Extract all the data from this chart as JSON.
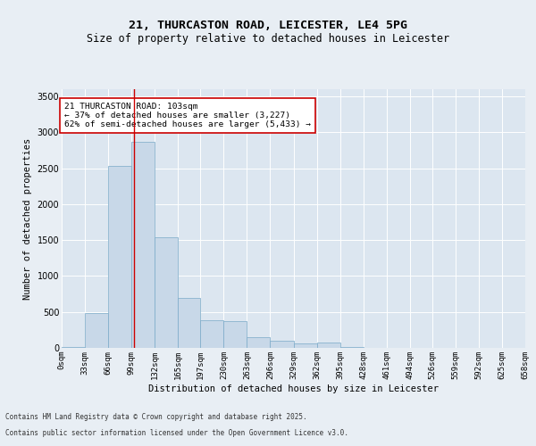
{
  "title1": "21, THURCASTON ROAD, LEICESTER, LE4 5PG",
  "title2": "Size of property relative to detached houses in Leicester",
  "xlabel": "Distribution of detached houses by size in Leicester",
  "ylabel": "Number of detached properties",
  "footnote1": "Contains HM Land Registry data © Crown copyright and database right 2025.",
  "footnote2": "Contains public sector information licensed under the Open Government Licence v3.0.",
  "bin_edges": [
    0,
    33,
    66,
    99,
    132,
    165,
    197,
    230,
    263,
    296,
    329,
    362,
    395,
    428,
    461,
    494,
    526,
    559,
    592,
    625,
    658
  ],
  "bar_heights": [
    18,
    480,
    2530,
    2870,
    1540,
    700,
    380,
    375,
    150,
    100,
    58,
    80,
    18,
    5,
    5,
    5,
    3,
    3,
    3,
    2
  ],
  "bar_color": "#c8d8e8",
  "bar_edge_color": "#7aaac8",
  "property_size": 103,
  "vline_color": "#cc0000",
  "annotation_text": "21 THURCASTON ROAD: 103sqm\n← 37% of detached houses are smaller (3,227)\n62% of semi-detached houses are larger (5,433) →",
  "annotation_box_color": "#ffffff",
  "annotation_box_edge_color": "#cc0000",
  "ylim": [
    0,
    3600
  ],
  "yticks": [
    0,
    500,
    1000,
    1500,
    2000,
    2500,
    3000,
    3500
  ],
  "background_color": "#e8eef4",
  "plot_background": "#dce6f0",
  "grid_color": "#ffffff",
  "title1_fontsize": 9.5,
  "title2_fontsize": 8.5,
  "tick_label_fontsize": 6.5,
  "ylabel_fontsize": 7.5,
  "xlabel_fontsize": 7.5,
  "annotation_fontsize": 6.8,
  "footnote_fontsize": 5.5
}
